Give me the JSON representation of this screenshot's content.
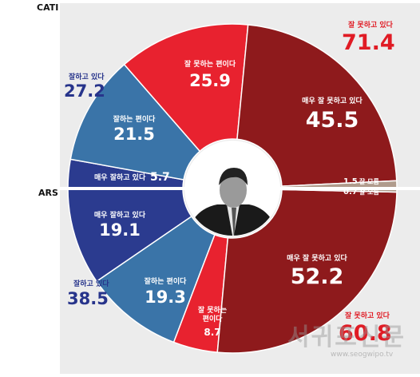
{
  "chart_data": [
    {
      "type": "donut",
      "name": "CATI",
      "half": "top",
      "title": "CATI",
      "segments": [
        {
          "label": "매우 잘하고 있다",
          "value": 5.7,
          "color": "#2b3b8f"
        },
        {
          "label": "잘하는 편이다",
          "value": 21.5,
          "color": "#3a74a8"
        },
        {
          "label": "잘 못하는 편이다",
          "value": 25.9,
          "color": "#e8222f"
        },
        {
          "label": "매우 잘 못하고 있다",
          "value": 45.5,
          "color": "#8e1a1c"
        },
        {
          "label": "잘 모름",
          "value": 1.5,
          "color": "#b09b8c"
        }
      ],
      "summaries": [
        {
          "label": "잘하고 있다",
          "value": "27.2"
        },
        {
          "label": "잘 못하고 있다",
          "value": "71.4"
        }
      ]
    },
    {
      "type": "donut",
      "name": "ARS",
      "half": "bottom",
      "title": "ARS",
      "segments": [
        {
          "label": "매우 잘하고 있다",
          "value": 19.1,
          "color": "#2b3b8f"
        },
        {
          "label": "잘하는 편이다",
          "value": 19.3,
          "color": "#3a74a8"
        },
        {
          "label": "잘 못하는 편이다",
          "value": 8.7,
          "color": "#e8222f"
        },
        {
          "label": "매우 잘 못하고 있다",
          "value": 52.2,
          "color": "#8e1a1c"
        },
        {
          "label": "잘 모름",
          "value": 0.7,
          "color": "#b09b8c"
        }
      ],
      "summaries": [
        {
          "label": "잘하고 있다",
          "value": "38.5"
        },
        {
          "label": "잘 못하고 있다",
          "value": "60.8"
        }
      ]
    }
  ],
  "labels": {
    "cati": "CATI",
    "ars": "ARS",
    "cati_positive_label": "잘하고 있다",
    "cati_positive_value": "27.2",
    "cati_negative_label": "잘 못하고 있다",
    "cati_negative_value": "71.4",
    "cati_very_good_label": "매우 잘하고 있다",
    "cati_very_good_value": "5.7",
    "cati_good_label": "잘하는 편이다",
    "cati_good_value": "21.5",
    "cati_bad_label": "잘 못하는 편이다",
    "cati_bad_value": "25.9",
    "cati_very_bad_label": "매우 잘 못하고 있다",
    "cati_very_bad_value": "45.5",
    "cati_unknown_value": "1.5",
    "cati_unknown_label": "잘 모름",
    "ars_unknown_value": "0.7",
    "ars_unknown_label": "잘 모름",
    "ars_very_good_label": "매우 잘하고 있다",
    "ars_very_good_value": "19.1",
    "ars_good_label": "잘하는 편이다",
    "ars_good_value": "19.3",
    "ars_bad_label_1": "잘 못하는",
    "ars_bad_label_2": "편이다",
    "ars_bad_value": "8.7",
    "ars_very_bad_label": "매우 잘 못하고 있다",
    "ars_very_bad_value": "52.2",
    "ars_positive_label": "잘하고 있다",
    "ars_positive_value": "38.5",
    "ars_negative_label": "잘 못하고 있다",
    "ars_negative_value": "60.8",
    "watermark": "서귀포신문",
    "watermark_url": "www.seogwipo.tv"
  }
}
